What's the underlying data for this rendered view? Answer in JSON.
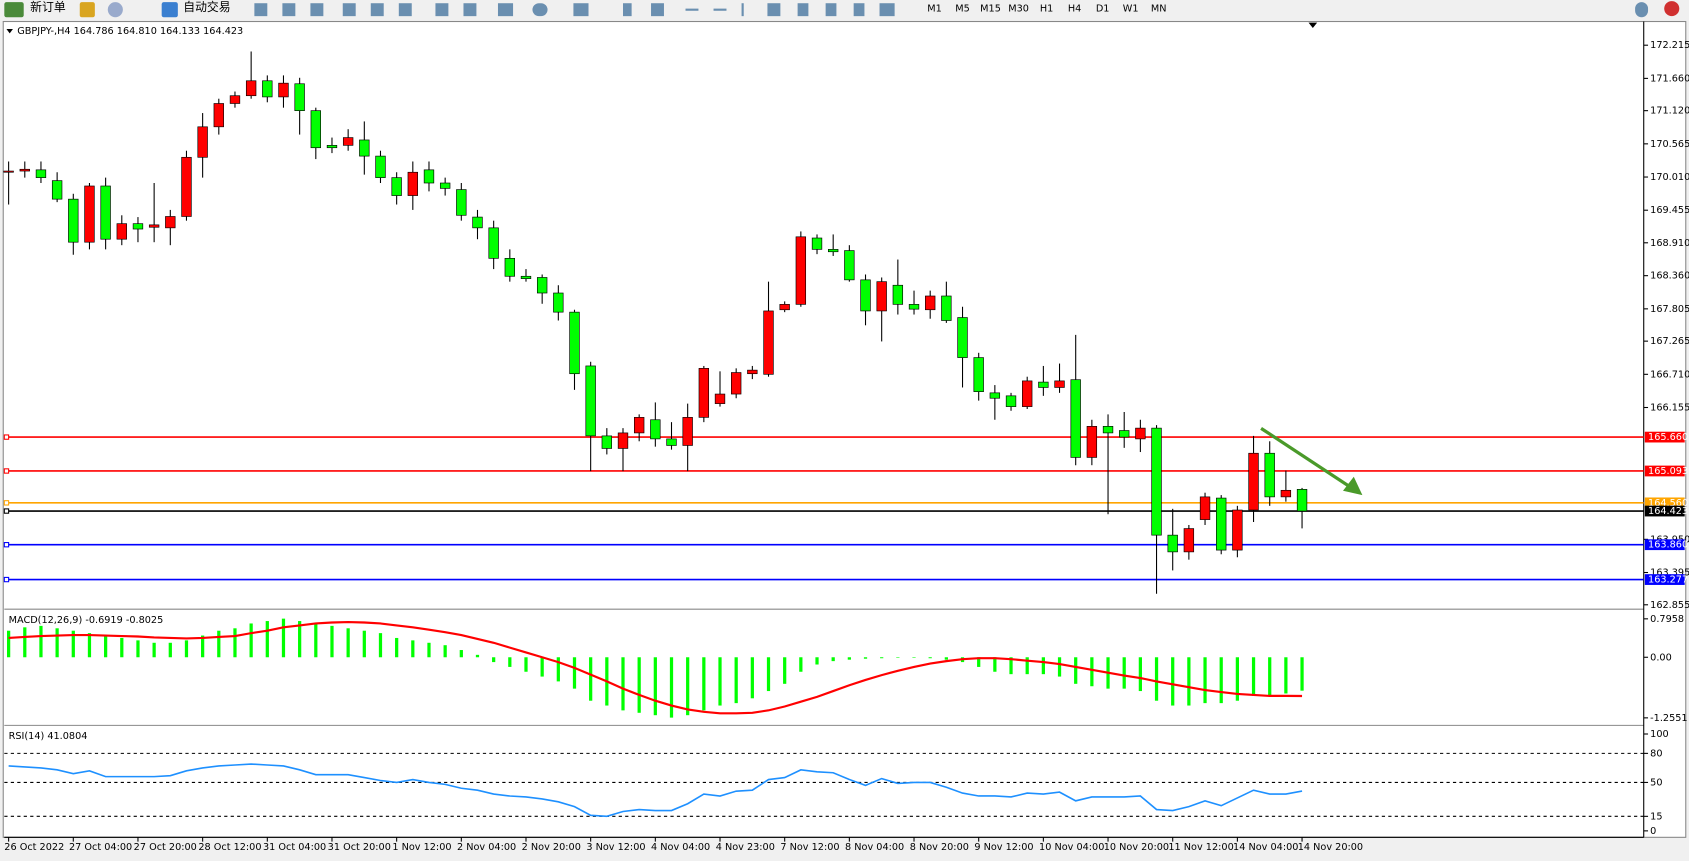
{
  "toolbar": {
    "buttons": [
      "新订单",
      "自动交易"
    ],
    "timeframes": [
      "M1",
      "M5",
      "M15",
      "M30",
      "H1",
      "H4",
      "D1",
      "W1",
      "MN"
    ]
  },
  "chart_data": [
    {
      "type": "candlestick",
      "title": "GBPJPY-,H4 164.786 164.810 164.133 164.423",
      "categories": [
        "26 Oct 2022",
        null,
        null,
        null,
        "27 Oct 04:00",
        null,
        null,
        null,
        "27 Oct 20:00",
        null,
        null,
        null,
        "28 Oct 12:00",
        null,
        null,
        null,
        "31 Oct 04:00",
        null,
        null,
        null,
        "31 Oct 20:00",
        null,
        null,
        null,
        "1 Nov 12:00",
        null,
        null,
        null,
        "2 Nov 04:00",
        null,
        null,
        null,
        "2 Nov 20:00",
        null,
        null,
        null,
        "3 Nov 12:00",
        null,
        null,
        null,
        "4 Nov 04:00",
        null,
        null,
        null,
        "4 Nov 23:00",
        null,
        null,
        null,
        "7 Nov 12:00",
        null,
        null,
        null,
        "8 Nov 04:00",
        null,
        null,
        null,
        "8 Nov 20:00",
        null,
        null,
        null,
        "9 Nov 12:00",
        null,
        null,
        null,
        "10 Nov 04:00",
        null,
        null,
        null,
        "10 Nov 20:00",
        null,
        null,
        null,
        "11 Nov 12:00",
        null,
        null,
        null,
        "14 Nov 04:00",
        null,
        null,
        null,
        "14 Nov 20:00"
      ],
      "open": [
        170.09,
        170.11,
        170.13,
        169.95,
        169.64,
        168.92,
        169.86,
        168.97,
        169.23,
        169.17,
        169.16,
        169.35,
        170.34,
        170.85,
        171.24,
        171.37,
        171.62,
        171.35,
        171.57,
        171.12,
        170.54,
        170.54,
        170.63,
        170.36,
        170.0,
        169.7,
        170.13,
        169.91,
        169.8,
        169.34,
        169.16,
        168.65,
        168.35,
        168.33,
        168.07,
        167.75,
        166.85,
        165.68,
        165.47,
        165.73,
        165.95,
        165.63,
        165.52,
        165.99,
        166.22,
        166.38,
        166.72,
        166.71,
        167.79,
        167.88,
        168.99,
        168.8,
        168.78,
        168.29,
        167.77,
        168.2,
        167.88,
        167.79,
        168.02,
        167.66,
        166.99,
        166.4,
        166.35,
        166.17,
        166.58,
        166.49,
        166.62,
        165.32,
        165.84,
        165.77,
        165.63,
        165.81,
        164.02,
        163.74,
        164.28,
        164.64,
        163.77,
        164.44,
        165.39,
        164.66,
        164.786
      ],
      "high": [
        170.27,
        170.27,
        170.27,
        170.09,
        169.73,
        169.91,
        170.0,
        169.37,
        169.34,
        169.91,
        169.46,
        170.45,
        171.08,
        171.32,
        171.44,
        172.11,
        171.71,
        171.71,
        171.67,
        171.17,
        170.67,
        170.81,
        170.94,
        170.45,
        170.09,
        170.27,
        170.27,
        170.0,
        169.91,
        169.46,
        169.28,
        168.8,
        168.47,
        168.38,
        168.2,
        167.79,
        166.92,
        165.81,
        165.81,
        166.04,
        166.24,
        165.91,
        166.22,
        166.85,
        166.76,
        166.81,
        166.85,
        168.26,
        167.93,
        169.1,
        169.05,
        169.05,
        168.87,
        168.38,
        168.33,
        168.63,
        168.11,
        168.11,
        168.26,
        167.84,
        167.07,
        166.53,
        166.4,
        166.67,
        166.85,
        166.89,
        167.37,
        165.95,
        166.04,
        166.08,
        165.95,
        165.86,
        164.46,
        164.19,
        164.73,
        164.69,
        164.51,
        165.68,
        165.59,
        165.1,
        164.81
      ],
      "low": [
        169.55,
        170.0,
        169.91,
        169.59,
        168.71,
        168.8,
        168.8,
        168.87,
        168.92,
        168.92,
        168.87,
        169.28,
        170.0,
        170.72,
        171.17,
        171.32,
        171.26,
        171.17,
        170.72,
        170.31,
        170.41,
        170.45,
        170.05,
        169.91,
        169.55,
        169.46,
        169.77,
        169.7,
        169.28,
        168.97,
        168.47,
        168.26,
        168.26,
        167.89,
        167.61,
        166.45,
        165.09,
        165.37,
        165.09,
        165.59,
        165.5,
        165.45,
        165.09,
        165.91,
        166.17,
        166.31,
        166.63,
        166.67,
        167.75,
        167.84,
        168.72,
        168.69,
        168.26,
        167.53,
        167.26,
        167.71,
        167.71,
        167.64,
        167.57,
        166.49,
        166.27,
        165.95,
        166.1,
        166.13,
        166.35,
        166.4,
        165.19,
        165.19,
        164.37,
        165.48,
        165.41,
        163.04,
        163.43,
        163.61,
        164.19,
        163.7,
        163.65,
        164.24,
        164.51,
        164.58,
        164.133
      ],
      "close": [
        170.11,
        170.14,
        170.0,
        169.64,
        168.92,
        169.86,
        168.97,
        169.23,
        169.14,
        169.21,
        169.35,
        170.34,
        170.85,
        171.24,
        171.37,
        171.62,
        171.35,
        171.58,
        171.12,
        170.5,
        170.5,
        170.67,
        170.36,
        170.0,
        169.7,
        170.09,
        169.91,
        169.82,
        169.37,
        169.16,
        168.65,
        168.35,
        168.31,
        168.07,
        167.75,
        166.72,
        165.68,
        165.47,
        165.73,
        165.99,
        165.63,
        165.52,
        165.99,
        166.81,
        166.38,
        166.74,
        166.78,
        167.77,
        167.88,
        169.01,
        168.8,
        168.76,
        168.29,
        167.77,
        168.26,
        167.88,
        167.8,
        168.02,
        167.61,
        166.99,
        166.42,
        166.31,
        166.17,
        166.6,
        166.49,
        166.6,
        165.32,
        165.84,
        165.73,
        165.66,
        165.81,
        164.02,
        163.74,
        164.13,
        164.66,
        163.77,
        164.44,
        165.39,
        164.66,
        164.77,
        164.423
      ],
      "up_color": "#ff0000",
      "down_color": "#00ff00",
      "ylim": [
        162.8,
        172.575
      ],
      "yticks": [
        {
          "value": 172.215,
          "label": "172.215"
        },
        {
          "value": 171.66,
          "label": "171.660"
        },
        {
          "value": 171.12,
          "label": "171.120"
        },
        170.565,
        {
          "value": 170.01,
          "label": "170.010"
        },
        169.455,
        {
          "value": 168.91,
          "label": "168.910"
        },
        {
          "value": 168.36,
          "label": "168.360"
        },
        167.805,
        167.265,
        {
          "value": 166.71,
          "label": "166.710"
        },
        166.155,
        {
          "value": 163.95,
          "label": "163.950"
        },
        163.395,
        162.855
      ],
      "levels": [
        {
          "value": 165.66,
          "label": "165.660",
          "color": "#ff0000"
        },
        {
          "value": 165.093,
          "label": "165.093",
          "color": "#ff0000"
        },
        {
          "value": 164.56,
          "label": "164.560",
          "color": "#ffa500"
        },
        {
          "value": 164.423,
          "label": "164.423",
          "color": "#000000"
        },
        {
          "value": 163.86,
          "label": "163.860",
          "color": "#0000ff"
        },
        {
          "value": 163.277,
          "label": "163.277",
          "color": "#0000ff"
        }
      ]
    },
    {
      "type": "macd",
      "title": "MACD(12,26,9) -0.6919 -0.8025",
      "series": [
        {
          "style": "bar",
          "color": "#00ff00",
          "values": [
            0.55,
            0.62,
            0.65,
            0.6,
            0.55,
            0.5,
            0.45,
            0.4,
            0.35,
            0.3,
            0.3,
            0.35,
            0.45,
            0.55,
            0.6,
            0.7,
            0.75,
            0.8,
            0.75,
            0.7,
            0.65,
            0.6,
            0.55,
            0.5,
            0.4,
            0.35,
            0.3,
            0.25,
            0.15,
            0.05,
            -0.1,
            -0.2,
            -0.3,
            -0.4,
            -0.5,
            -0.65,
            -0.9,
            -1.0,
            -1.1,
            -1.15,
            -1.2,
            -1.25,
            -1.2,
            -1.1,
            -1.0,
            -0.95,
            -0.85,
            -0.7,
            -0.55,
            -0.3,
            -0.15,
            -0.08,
            -0.05,
            -0.03,
            -0.02,
            -0.01,
            -0.01,
            -0.02,
            -0.05,
            -0.1,
            -0.2,
            -0.3,
            -0.35,
            -0.35,
            -0.35,
            -0.4,
            -0.55,
            -0.6,
            -0.65,
            -0.65,
            -0.7,
            -0.9,
            -1.0,
            -1.0,
            -0.95,
            -0.95,
            -0.9,
            -0.8,
            -0.8,
            -0.75,
            -0.6919
          ]
        },
        {
          "style": "line",
          "color": "#ff0000",
          "values": [
            0.4,
            0.42,
            0.44,
            0.45,
            0.46,
            0.46,
            0.45,
            0.44,
            0.43,
            0.41,
            0.4,
            0.39,
            0.4,
            0.42,
            0.44,
            0.5,
            0.55,
            0.62,
            0.66,
            0.7,
            0.72,
            0.73,
            0.72,
            0.7,
            0.66,
            0.62,
            0.57,
            0.52,
            0.46,
            0.38,
            0.3,
            0.2,
            0.1,
            0.0,
            -0.1,
            -0.22,
            -0.36,
            -0.5,
            -0.65,
            -0.78,
            -0.9,
            -1.0,
            -1.08,
            -1.13,
            -1.16,
            -1.16,
            -1.15,
            -1.1,
            -1.02,
            -0.92,
            -0.82,
            -0.7,
            -0.58,
            -0.47,
            -0.37,
            -0.28,
            -0.2,
            -0.13,
            -0.08,
            -0.04,
            -0.02,
            -0.02,
            -0.04,
            -0.07,
            -0.1,
            -0.14,
            -0.2,
            -0.26,
            -0.32,
            -0.38,
            -0.43,
            -0.5,
            -0.56,
            -0.62,
            -0.68,
            -0.72,
            -0.76,
            -0.78,
            -0.8,
            -0.8,
            -0.8025
          ]
        }
      ],
      "ylim": [
        -1.2551,
        0.7958
      ],
      "yticks": [
        0.7958,
        {
          "value": 0,
          "label": "0.00"
        },
        -1.2551
      ]
    },
    {
      "type": "line",
      "title": "RSI(14) 41.0804",
      "color": "#1e90ff",
      "values": [
        67,
        66,
        65,
        63,
        59,
        62,
        56,
        56,
        56,
        56,
        57,
        62,
        65,
        67,
        68,
        69,
        68,
        67,
        63,
        58,
        58,
        58,
        55,
        52,
        50,
        53,
        50,
        48,
        44,
        42,
        38,
        36,
        35,
        33,
        30,
        25,
        16,
        15,
        20,
        22,
        21,
        21,
        28,
        38,
        36,
        41,
        42,
        53,
        55,
        63,
        61,
        60,
        53,
        47,
        54,
        49,
        50,
        50,
        45,
        39,
        36,
        36,
        35,
        39,
        38,
        40,
        31,
        35,
        35,
        35,
        36,
        22,
        21,
        25,
        31,
        26,
        34,
        42,
        38,
        38,
        41.0804
      ],
      "ylim": [
        0,
        100
      ],
      "yticks": [
        100,
        80,
        50,
        15,
        0
      ],
      "levels": [
        80,
        50,
        15
      ]
    }
  ]
}
